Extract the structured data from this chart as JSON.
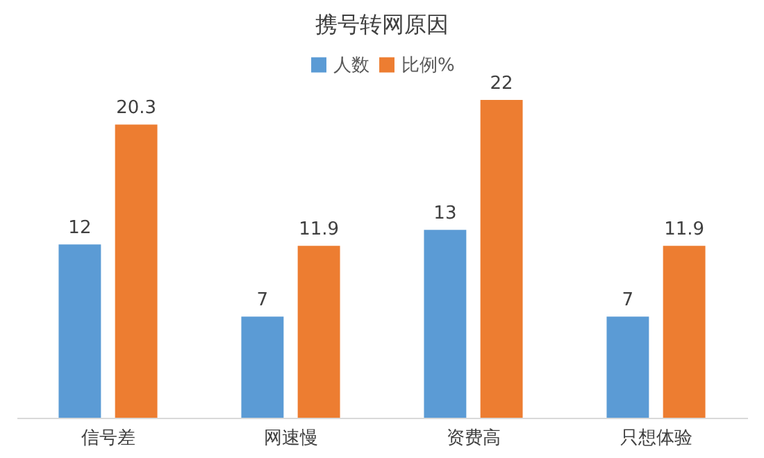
{
  "chart_data": {
    "type": "bar",
    "title": "携号转网原因",
    "categories": [
      "信号差",
      "网速慢",
      "资费高",
      "只想体验"
    ],
    "series": [
      {
        "name": "人数",
        "color": "#5b9bd5",
        "values": [
          12,
          7,
          13,
          7
        ]
      },
      {
        "name": "比例%",
        "color": "#ed7d31",
        "values": [
          20.3,
          11.9,
          22,
          11.9
        ]
      }
    ],
    "data_labels": true,
    "legend": "top",
    "grid": false
  }
}
